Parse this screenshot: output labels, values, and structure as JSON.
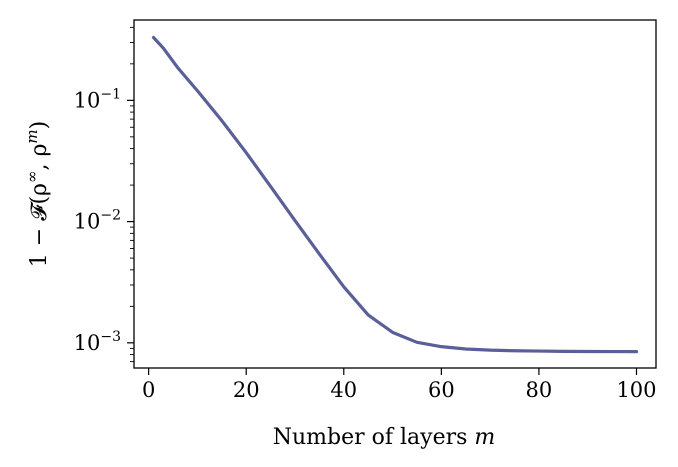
{
  "chart_data": {
    "type": "line",
    "xlabel": "Number of layers",
    "xlabel_var": "m",
    "ylabel": "1 − 𝓕(ρ∞, ρm)",
    "ylabel_parts": {
      "prefix": "1 − 𝓕(ρ",
      "sup1": "∞",
      "mid": ", ρ",
      "sup2": "m",
      "suffix": ")"
    },
    "xlim": [
      -3,
      104
    ],
    "ylim": [
      0.00062,
      0.46
    ],
    "yscale": "log",
    "x_ticks": [
      0,
      20,
      40,
      60,
      80,
      100
    ],
    "y_ticks": [
      {
        "value": 0.001,
        "base": "10",
        "exp": "−3"
      },
      {
        "value": 0.01,
        "base": "10",
        "exp": "−2"
      },
      {
        "value": 0.1,
        "base": "10",
        "exp": "−1"
      }
    ],
    "grid": false,
    "color": "#5b5f97",
    "series": [
      {
        "x": [
          1,
          3,
          6,
          10,
          15,
          20,
          25,
          30,
          35,
          40,
          45,
          50,
          55,
          60,
          65,
          70,
          75,
          80,
          85,
          90,
          95,
          100
        ],
        "values": [
          0.33,
          0.27,
          0.185,
          0.12,
          0.068,
          0.037,
          0.0195,
          0.0102,
          0.0054,
          0.0029,
          0.0017,
          0.00122,
          0.00101,
          0.00093,
          0.00089,
          0.00087,
          0.00086,
          0.000855,
          0.00085,
          0.000848,
          0.000847,
          0.000846
        ]
      }
    ]
  }
}
